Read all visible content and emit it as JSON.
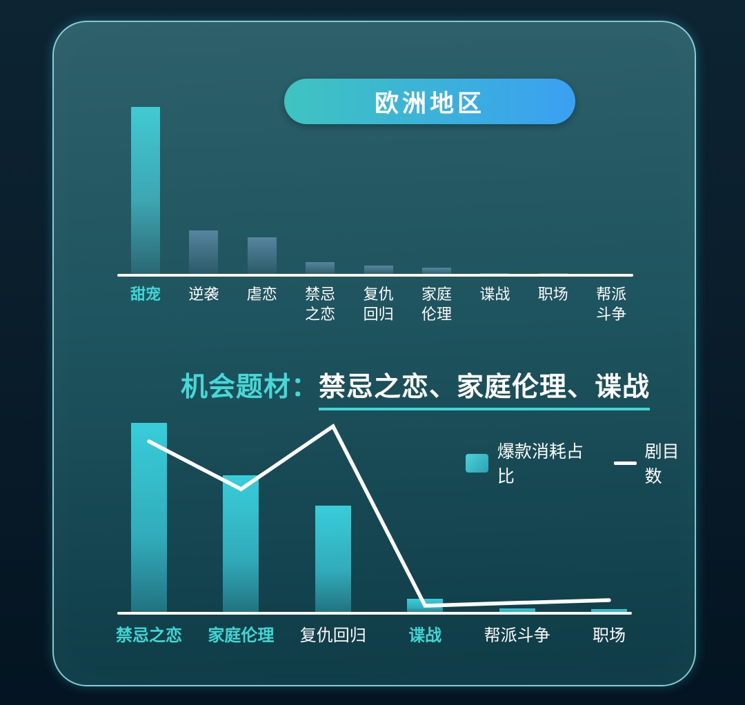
{
  "header": {
    "title": "欧洲地区"
  },
  "insight": {
    "prefix": "机会题材：",
    "highlight": "禁忌之恋、家庭伦理、谍战"
  },
  "legend": {
    "bar_label": "爆款消耗占比",
    "line_label": "剧目数"
  },
  "colors": {
    "accent_teal": "#3fd6d6",
    "pill_gradient_left": "#3ec4c0",
    "pill_gradient_right": "#3aa0f2",
    "hero_bar_teal": "#41cad3",
    "secondary_bar_slate": "#56859f",
    "bottom_bar_teal": "#38cdda",
    "line_color": "#ffffff",
    "card_border_cyan": "#96e2ec"
  },
  "chart_data": [
    {
      "type": "bar",
      "categories": [
        "甜宠",
        "逆袭",
        "虐恋",
        "禁忌之恋",
        "复仇回归",
        "家庭伦理",
        "谍战",
        "职场",
        "帮派斗争"
      ],
      "display_labels": [
        "甜宠",
        "逆袭",
        "虐恋",
        "禁忌\n之恋",
        "复仇\n回归",
        "家庭\n伦理",
        "谍战",
        "职场",
        "帮派\n斗争"
      ],
      "values": [
        100,
        27,
        23,
        8,
        6,
        5,
        1.6,
        1.6,
        1.2
      ],
      "highlighted_categories": [
        "甜宠"
      ],
      "title": "",
      "xlabel": "",
      "ylabel": "",
      "grid": false,
      "legend_position": "none",
      "ylim": [
        0,
        100
      ]
    },
    {
      "type": "bar+line",
      "categories": [
        "禁忌之恋",
        "家庭伦理",
        "复仇回归",
        "谍战",
        "帮派斗争",
        "职场"
      ],
      "display_labels": [
        "禁忌之恋",
        "家庭伦理",
        "复仇回归",
        "谍战",
        "帮派斗争",
        "职场"
      ],
      "series": [
        {
          "name": "爆款消耗占比",
          "type": "bar",
          "values": [
            100,
            72.6,
            56.7,
            7.9,
            2.9,
            2.5
          ]
        },
        {
          "name": "剧目数",
          "type": "line",
          "values": [
            90.3,
            65.3,
            98.2,
            4.3,
            5.8,
            7.2
          ]
        }
      ],
      "highlighted_categories": [
        "禁忌之恋",
        "家庭伦理",
        "谍战"
      ],
      "title": "",
      "xlabel": "",
      "ylabel": "",
      "grid": false,
      "legend_position": "top-right",
      "ylim": [
        0,
        100
      ]
    }
  ]
}
